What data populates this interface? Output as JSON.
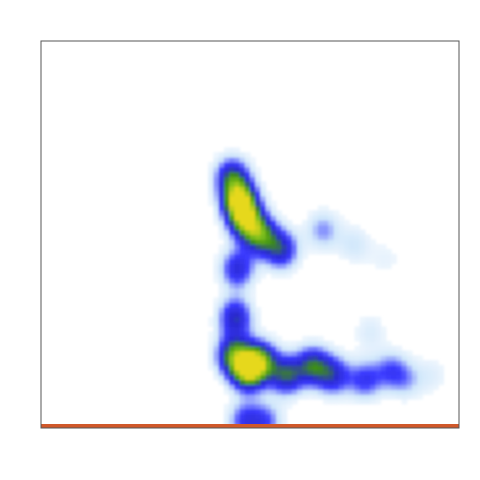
{
  "chart_data": {
    "type": "heatmap",
    "title": "",
    "xlabel": "",
    "ylabel": "",
    "colorscale": [
      "#ffffff",
      "#cfe6fb",
      "#3b3bff",
      "#2a2ad0",
      "#3c8f12",
      "#7cbf1c",
      "#e6d81a"
    ],
    "zlim": [
      0,
      1
    ],
    "x_range": [
      0,
      40
    ],
    "y_range": [
      0,
      40
    ],
    "regions": [
      {
        "x": 18.5,
        "y": 9.0,
        "z": 0.05
      },
      {
        "x": 18.3,
        "y": 26.0,
        "z": 0.55
      },
      {
        "x": 19.0,
        "y": 23.5,
        "z": 0.95
      },
      {
        "x": 19.6,
        "y": 21.5,
        "z": 0.7
      },
      {
        "x": 21.0,
        "y": 20.0,
        "z": 0.62
      },
      {
        "x": 23.0,
        "y": 18.5,
        "z": 0.5
      },
      {
        "x": 18.8,
        "y": 16.5,
        "z": 0.45
      },
      {
        "x": 18.6,
        "y": 11.5,
        "z": 0.5
      },
      {
        "x": 18.4,
        "y": 7.5,
        "z": 0.6
      },
      {
        "x": 19.8,
        "y": 6.0,
        "z": 0.85
      },
      {
        "x": 21.0,
        "y": 7.0,
        "z": 0.65
      },
      {
        "x": 23.5,
        "y": 5.5,
        "z": 0.55
      },
      {
        "x": 26.0,
        "y": 6.5,
        "z": 0.55
      },
      {
        "x": 28.0,
        "y": 5.5,
        "z": 0.45
      },
      {
        "x": 31.0,
        "y": 5.0,
        "z": 0.35
      },
      {
        "x": 33.5,
        "y": 6.0,
        "z": 0.28
      },
      {
        "x": 35.0,
        "y": 5.0,
        "z": 0.18
      },
      {
        "x": 37.5,
        "y": 5.5,
        "z": 0.1
      },
      {
        "x": 27.0,
        "y": 20.5,
        "z": 0.25
      },
      {
        "x": 30.0,
        "y": 19.0,
        "z": 0.15
      },
      {
        "x": 33.0,
        "y": 17.5,
        "z": 0.08
      },
      {
        "x": 31.5,
        "y": 10.0,
        "z": 0.12
      },
      {
        "x": 19.5,
        "y": 0.8,
        "z": 0.35
      },
      {
        "x": 21.5,
        "y": 0.7,
        "z": 0.3
      }
    ],
    "grid": false,
    "legend": "none"
  },
  "colors": {
    "axis_frame": "#555555",
    "baseline": "#d0582a",
    "baseline_accent": "#8a7a55"
  }
}
